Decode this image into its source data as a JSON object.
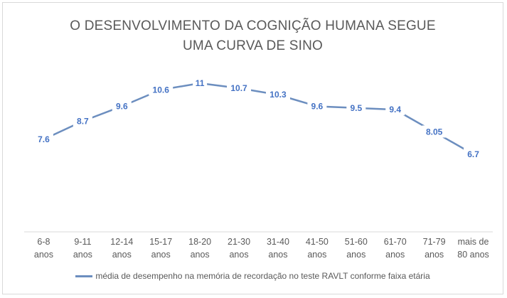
{
  "title_line1": "O DESENVOLVIMENTO DA COGNIÇÃO HUMANA SEGUE",
  "title_line2": "UMA CURVA DE SINO",
  "colors": {
    "series": "#6c8ebf",
    "label": "#4472c4",
    "axis_text": "#595959",
    "axis_line": "#d9d9d9"
  },
  "chart_data": {
    "type": "line",
    "title": "O DESENVOLVIMENTO DA COGNIÇÃO HUMANA SEGUE UMA CURVA DE SINO",
    "categories": [
      [
        "6-8",
        "anos"
      ],
      [
        "9-11",
        "anos"
      ],
      [
        "12-14",
        "anos"
      ],
      [
        "15-17",
        "anos"
      ],
      [
        "18-20",
        "anos"
      ],
      [
        "21-30",
        "anos"
      ],
      [
        "31-40",
        "anos"
      ],
      [
        "41-50",
        "anos"
      ],
      [
        "51-60",
        "anos"
      ],
      [
        "61-70",
        "anos"
      ],
      [
        "71-79",
        "anos"
      ],
      [
        "mais de",
        "80 anos"
      ]
    ],
    "series": [
      {
        "name": "média de desempenho na memória de recordação no teste RAVLT conforme faixa etária",
        "values": [
          7.6,
          8.7,
          9.6,
          10.6,
          11,
          10.7,
          10.3,
          9.6,
          9.5,
          9.4,
          8.05,
          6.7
        ],
        "labels": [
          "7.6",
          "8.7",
          "9.6",
          "10.6",
          "11",
          "10.7",
          "10.3",
          "9.6",
          "9.5",
          "9.4",
          "8.05",
          "6.7"
        ]
      }
    ],
    "ylim": [
      0,
      12
    ],
    "grid": false,
    "legend_position": "bottom"
  }
}
